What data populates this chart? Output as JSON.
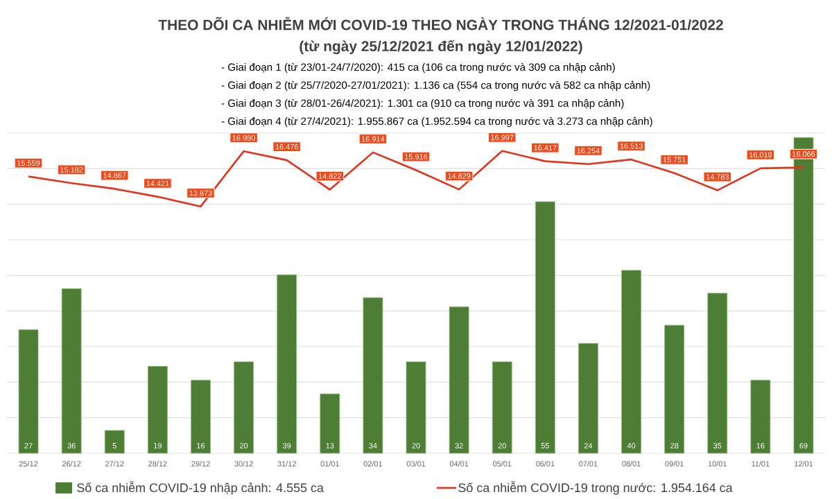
{
  "chart_data": {
    "type": "bar",
    "title": "THEO DÕI CA NHIỄM MỚI COVID-19 THEO NGÀY TRONG THÁNG 12/2021-01/2022",
    "subtitle": "(từ ngày 25/12/2021 đến ngày 12/01/2022)",
    "annotations": [
      "- Giai đoạn 1 (từ 23/01-24/7/2020): 415 ca (106 ca trong nước và 309 ca nhập cảnh)",
      "- Giai đoạn 2 (từ 25/7/2020-27/01/2021): 1.136 ca (554 ca trong nước và 582 ca nhập cảnh)",
      "- Giai đoạn 3 (từ 28/01-26/4/2021): 1.301 ca (910 ca trong nước và 391 ca nhập cảnh)",
      "- Giai đoạn 4 (từ 27/4/2021): 1.955.867 ca (1.952.594 ca trong nước và 3.273 ca nhập cảnh)"
    ],
    "categories": [
      "25/12",
      "26/12",
      "27/12",
      "28/12",
      "29/12",
      "30/12",
      "31/12",
      "01/01",
      "02/01",
      "03/01",
      "04/01",
      "05/01",
      "06/01",
      "07/01",
      "08/01",
      "09/01",
      "10/01",
      "11/01",
      "12/01"
    ],
    "series": [
      {
        "name": "Số ca nhiễm COVID-19 nhập cảnh: 4.555 ca",
        "axis": "y2",
        "color": "#4e7d35",
        "values": [
          27,
          36,
          5,
          19,
          16,
          20,
          39,
          13,
          34,
          20,
          32,
          20,
          55,
          24,
          40,
          28,
          35,
          16,
          69
        ],
        "value_labels": [
          "27",
          "36",
          "5",
          "19",
          "16",
          "20",
          "39",
          "13",
          "34",
          "20",
          "32",
          "20",
          "55",
          "24",
          "40",
          "28",
          "35",
          "16",
          "69"
        ]
      },
      {
        "name": "Số ca nhiễm COVID-19 trong nước: 1.954.164 ca",
        "type": "line",
        "color": "#e5321c",
        "values": [
          15559,
          15182,
          14867,
          14421,
          13873,
          16980,
          16476,
          14822,
          16914,
          15916,
          14829,
          16997,
          16417,
          16254,
          16513,
          15751,
          14783,
          16019,
          16066
        ],
        "value_labels": [
          "15.559",
          "15.182",
          "14.867",
          "14.421",
          "13.873",
          "16.980",
          "16.476",
          "14.822",
          "16.914",
          "15.916",
          "14.829",
          "16.997",
          "16.417",
          "16.254",
          "16.513",
          "15.751",
          "14.783",
          "16.019",
          "16.066"
        ]
      }
    ],
    "ylim": [
      0,
      18000
    ],
    "yticks": [
      {
        "value": 0,
        "label": null
      },
      {
        "value": 2000,
        "label": null
      },
      {
        "value": 4000,
        "label": null
      },
      {
        "value": 6000,
        "label": null
      },
      {
        "value": 8000,
        "label": null
      },
      {
        "value": 10000,
        "label": null
      },
      {
        "value": 12000,
        "label": null
      },
      {
        "value": 14000,
        "label": null
      },
      {
        "value": 16000,
        "label": null
      },
      {
        "value": 18000,
        "label": null
      }
    ],
    "y2lim": [
      0,
      70
    ],
    "grid": "y",
    "tick_labels": "x",
    "legend": "bottom"
  }
}
